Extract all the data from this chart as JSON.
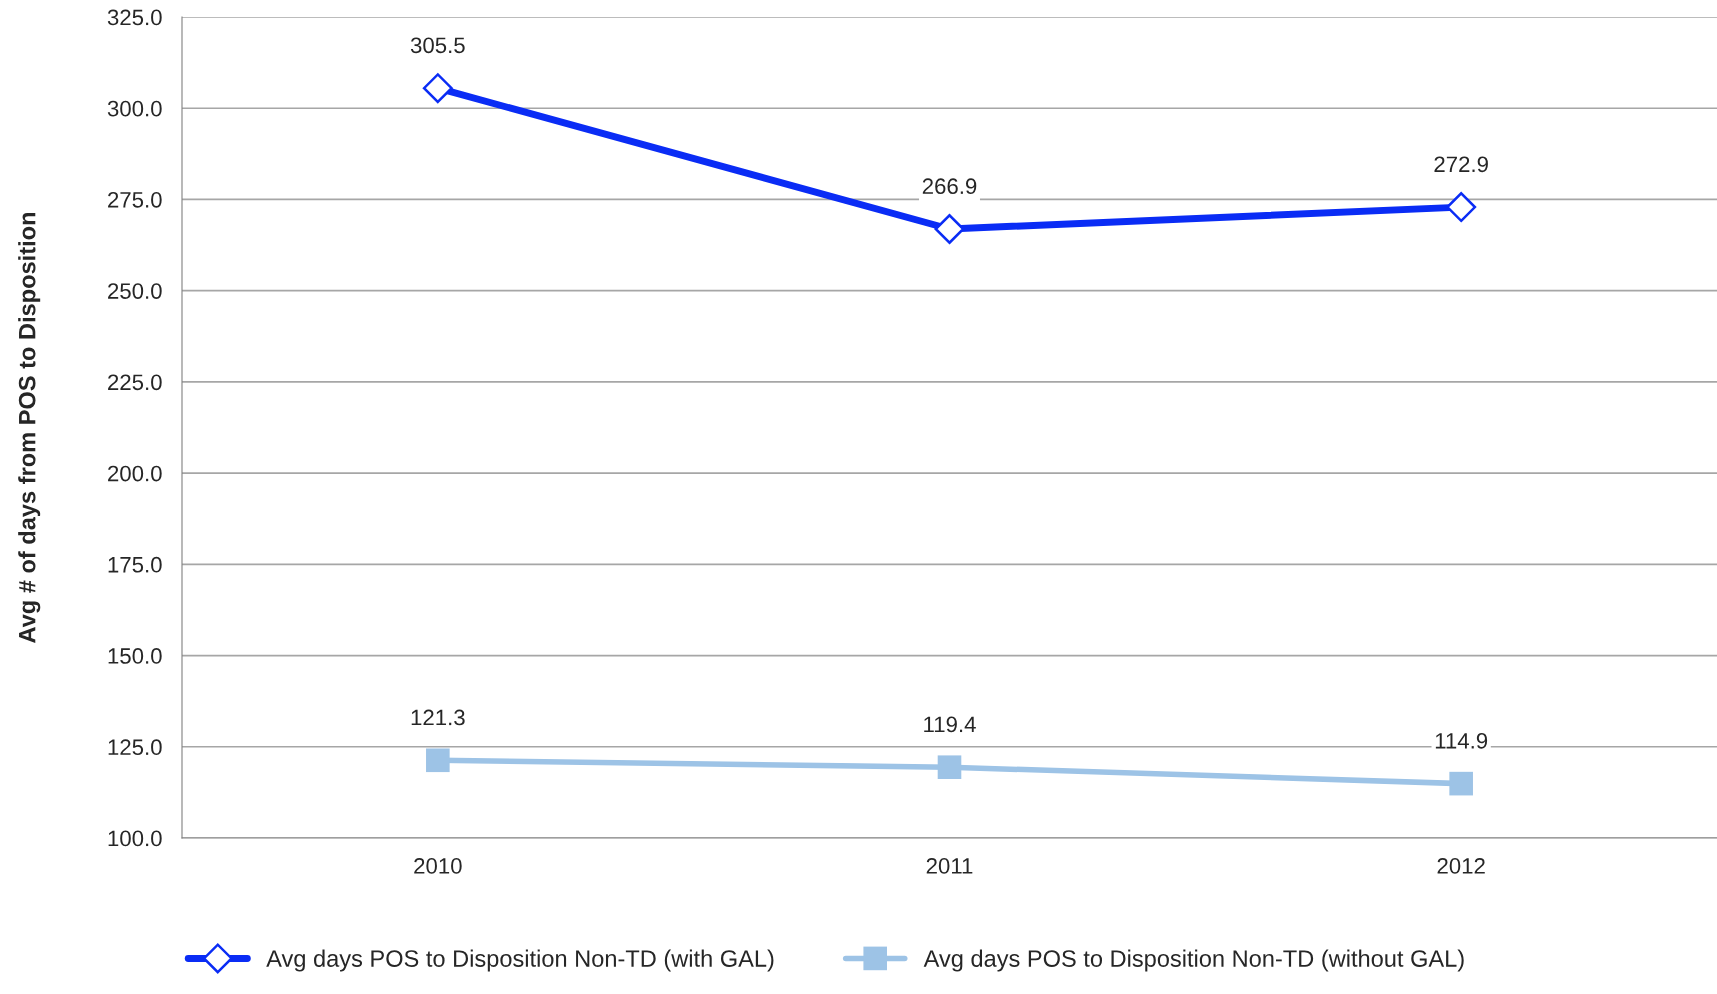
{
  "chart_data": {
    "type": "line",
    "ylabel": "Avg # of days from POS to Disposition",
    "categories": [
      "2010",
      "2011",
      "2012"
    ],
    "series": [
      {
        "name": "Avg days POS to Disposition Non-TD (with GAL)",
        "color": "#0a2cf5",
        "marker": "diamond",
        "values": [
          305.5,
          266.9,
          272.9
        ]
      },
      {
        "name": "Avg days POS to Disposition Non-TD (without GAL)",
        "color": "#9dc3e6",
        "marker": "square",
        "values": [
          121.3,
          119.4,
          114.9
        ]
      }
    ],
    "ylim": [
      100,
      325
    ],
    "yticks": [
      {
        "value": 100,
        "label": "100.0"
      },
      {
        "value": 125,
        "label": "125.0"
      },
      {
        "value": 150,
        "label": "150.0"
      },
      {
        "value": 175,
        "label": "175.0"
      },
      {
        "value": 200,
        "label": "200.0"
      },
      {
        "value": 225,
        "label": "225.0"
      },
      {
        "value": 250,
        "label": "250.0"
      },
      {
        "value": 275,
        "label": "275.0"
      },
      {
        "value": 300,
        "label": "300.0"
      },
      {
        "value": 325,
        "label": "325.0"
      }
    ],
    "grid": "y",
    "legend": "bottom",
    "data_labels": true
  }
}
